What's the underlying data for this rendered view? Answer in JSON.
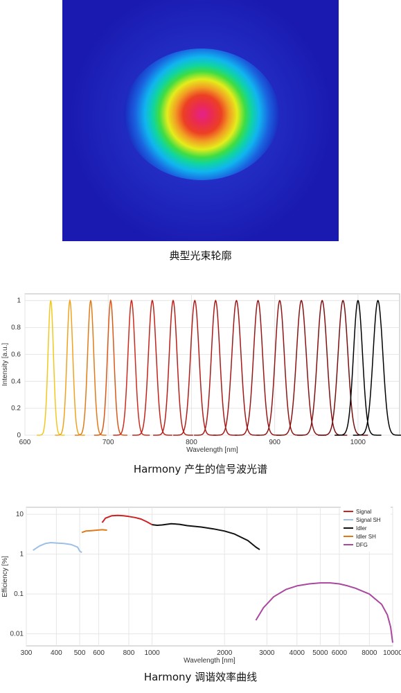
{
  "beam": {
    "caption": "典型光束轮廓",
    "colors": {
      "background": "#1a1fb8",
      "core": "#e8208a"
    }
  },
  "chart_data": [
    {
      "type": "line",
      "caption": "Harmony 产生的信号波光谱",
      "xlabel": "Wavelength [nm]",
      "ylabel": "Intensity [a.u.]",
      "xlim": [
        600,
        1050
      ],
      "ylim": [
        0,
        1.05
      ],
      "x_ticks": [
        600,
        700,
        800,
        900,
        1000
      ],
      "y_ticks": [
        0,
        0.2,
        0.4,
        0.6,
        0.8,
        1
      ],
      "grid": true,
      "peaks": [
        {
          "center": 631,
          "width": 4.2,
          "color": "#f2c81e"
        },
        {
          "center": 654,
          "width": 4.5,
          "color": "#f0a21e"
        },
        {
          "center": 679,
          "width": 4.8,
          "color": "#e07a18"
        },
        {
          "center": 703,
          "width": 5.0,
          "color": "#d85818"
        },
        {
          "center": 728,
          "width": 5.5,
          "color": "#cc2a1c"
        },
        {
          "center": 753,
          "width": 6.0,
          "color": "#c22218"
        },
        {
          "center": 778,
          "width": 6.0,
          "color": "#b81e18"
        },
        {
          "center": 804,
          "width": 6.5,
          "color": "#b01c18"
        },
        {
          "center": 829,
          "width": 6.5,
          "color": "#a81a18"
        },
        {
          "center": 854,
          "width": 7.0,
          "color": "#a01818"
        },
        {
          "center": 880,
          "width": 7.0,
          "color": "#981616"
        },
        {
          "center": 906,
          "width": 7.0,
          "color": "#901414"
        },
        {
          "center": 932,
          "width": 7.5,
          "color": "#881212"
        },
        {
          "center": 957,
          "width": 7.5,
          "color": "#801010"
        },
        {
          "center": 982,
          "width": 7.5,
          "color": "#780e0e"
        },
        {
          "center": 1000,
          "width": 7.0,
          "color": "#000000"
        },
        {
          "center": 1024,
          "width": 7.5,
          "color": "#000000"
        }
      ]
    },
    {
      "type": "line",
      "caption": "Harmony 调谐效率曲线",
      "xlabel": "Wavelength [nm]",
      "ylabel": "Efficiency [%]",
      "x_scale": "log",
      "y_scale": "log",
      "xlim": [
        300,
        10000
      ],
      "ylim": [
        0.005,
        15
      ],
      "x_ticks": [
        300,
        400,
        500,
        600,
        800,
        1000,
        2000,
        3000,
        4000,
        5000,
        6000,
        8000,
        10000
      ],
      "x_tick_labels": [
        "300",
        "400",
        "500",
        "600",
        "800",
        "1000",
        "2000",
        "3000",
        "4000",
        "5000",
        "6000",
        "8000",
        "10000"
      ],
      "y_ticks": [
        0.01,
        0.1,
        1,
        10
      ],
      "y_tick_labels": [
        "0.01",
        "0.1",
        "1",
        "10"
      ],
      "grid": true,
      "legend": "top-right",
      "series": [
        {
          "name": "Signal",
          "color": "#cc2222",
          "x": [
            620,
            640,
            680,
            720,
            760,
            800,
            850,
            900,
            950,
            1000
          ],
          "y": [
            6.2,
            8.0,
            9.2,
            9.4,
            9.2,
            8.8,
            8.3,
            7.6,
            6.5,
            5.5
          ]
        },
        {
          "name": "Signal SH",
          "color": "#9dbfe6",
          "x": [
            320,
            340,
            360,
            380,
            400,
            430,
            460,
            490,
            500,
            510
          ],
          "y": [
            1.25,
            1.6,
            1.85,
            1.95,
            1.9,
            1.85,
            1.75,
            1.5,
            1.2,
            1.1
          ]
        },
        {
          "name": "Idler",
          "color": "#111111",
          "x": [
            1000,
            1050,
            1100,
            1200,
            1300,
            1400,
            1600,
            1800,
            2000,
            2200,
            2500,
            2700,
            2800
          ],
          "y": [
            5.5,
            5.3,
            5.4,
            5.8,
            5.6,
            5.2,
            4.8,
            4.3,
            3.8,
            3.2,
            2.2,
            1.5,
            1.3
          ]
        },
        {
          "name": "Idler SH",
          "color": "#e07818",
          "x": [
            510,
            530,
            560,
            590,
            620,
            650
          ],
          "y": [
            3.5,
            3.8,
            3.9,
            4.0,
            4.1,
            4.0
          ]
        },
        {
          "name": "DFG",
          "color": "#a9489e",
          "x": [
            2700,
            2900,
            3200,
            3600,
            4000,
            4500,
            5000,
            5500,
            6000,
            6500,
            7000,
            8000,
            9000,
            9500,
            9800,
            10000
          ],
          "y": [
            0.022,
            0.045,
            0.085,
            0.13,
            0.16,
            0.18,
            0.19,
            0.19,
            0.18,
            0.16,
            0.14,
            0.1,
            0.055,
            0.03,
            0.015,
            0.006
          ]
        }
      ]
    }
  ]
}
